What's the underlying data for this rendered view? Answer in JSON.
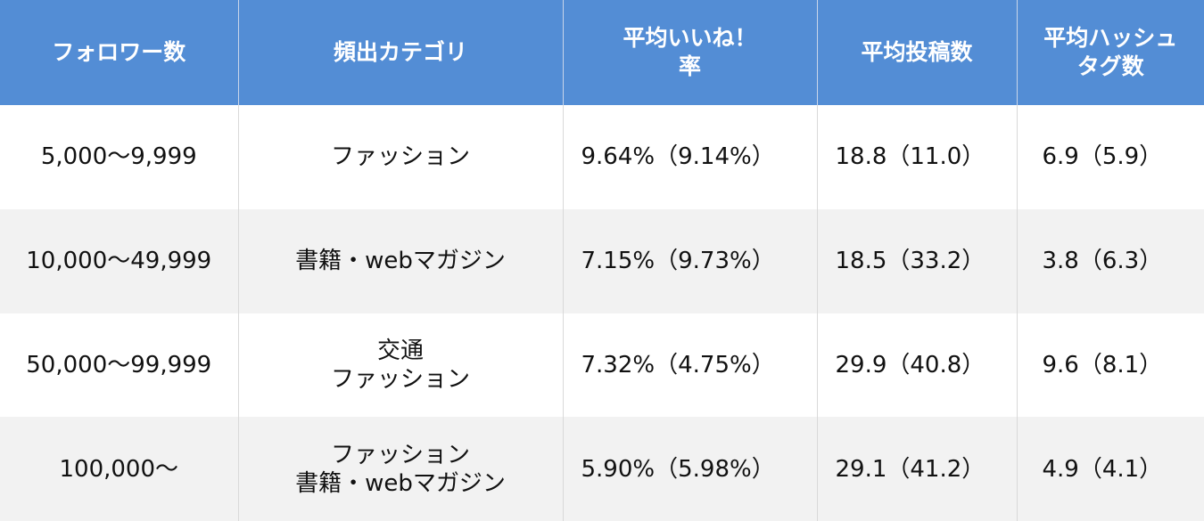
{
  "colors": {
    "header_bg": "#538DD5",
    "header_text": "#FFFFFF",
    "alt_row_bg": "#F2F2F2"
  },
  "headers": [
    "フォロワー数",
    "頻出カテゴリ",
    "平均いいね！\n率",
    "平均投稿数",
    "平均ハッシュ\nタグ数"
  ],
  "rows": [
    [
      "5,000～9,999",
      "ファッション",
      "9.64%（9.14%）",
      "18.8（11.0）",
      "6.9（5.9）"
    ],
    [
      "10,000～49,999",
      "書籍・webマガジン",
      "7.15%（9.73%）",
      "18.5（33.2）",
      "3.8（6.3）"
    ],
    [
      "50,000～99,999",
      "交通\nファッション",
      "7.32%（4.75%）",
      "29.9（40.8）",
      "9.6（8.1）"
    ],
    [
      "100,000～",
      "ファッション\n書籍・webマガジン",
      "5.90%（5.98%）",
      "29.1（41.2）",
      "4.9（4.1）"
    ]
  ]
}
